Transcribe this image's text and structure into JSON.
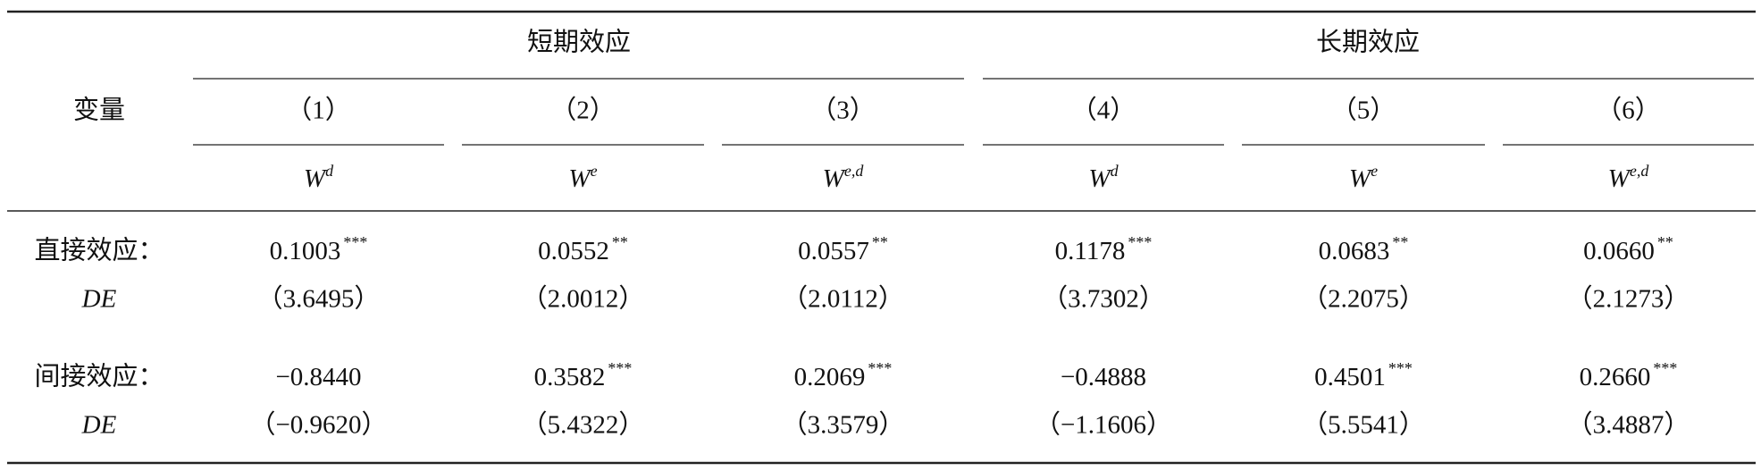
{
  "table": {
    "variable_header": "变量",
    "groups": [
      "短期效应",
      "长期效应"
    ],
    "columns": [
      "（1）",
      "（2）",
      "（3）",
      "（4）",
      "（5）",
      "（6）"
    ],
    "weights": [
      {
        "base": "W",
        "sup": "d"
      },
      {
        "base": "W",
        "sup": "e"
      },
      {
        "base": "W",
        "sup": "e,d"
      },
      {
        "base": "W",
        "sup": "d"
      },
      {
        "base": "W",
        "sup": "e"
      },
      {
        "base": "W",
        "sup": "e,d"
      }
    ],
    "rows": [
      {
        "label": "直接效应：",
        "sublabel": "DE",
        "cells": [
          {
            "value": "0.1003",
            "stars": "***",
            "t": "（3.6495）"
          },
          {
            "value": "0.0552",
            "stars": "**",
            "t": "（2.0012）"
          },
          {
            "value": "0.0557",
            "stars": "**",
            "t": "（2.0112）"
          },
          {
            "value": "0.1178",
            "stars": "***",
            "t": "（3.7302）"
          },
          {
            "value": "0.0683",
            "stars": "**",
            "t": "（2.2075）"
          },
          {
            "value": "0.0660",
            "stars": "**",
            "t": "（2.1273）"
          }
        ]
      },
      {
        "label": "间接效应：",
        "sublabel": "DE",
        "cells": [
          {
            "value": "−0.8440",
            "t": "（−0.9620）"
          },
          {
            "value": "0.3582",
            "stars": "***",
            "t": "（5.4322）"
          },
          {
            "value": "0.2069",
            "stars": "***",
            "t": "（3.3579）"
          },
          {
            "value": "−0.4888",
            "t": "（−1.1606）"
          },
          {
            "value": "0.4501",
            "stars": "***",
            "t": "（5.5541）"
          },
          {
            "value": "0.2660",
            "stars": "***",
            "t": "（3.4887）"
          }
        ]
      }
    ]
  }
}
